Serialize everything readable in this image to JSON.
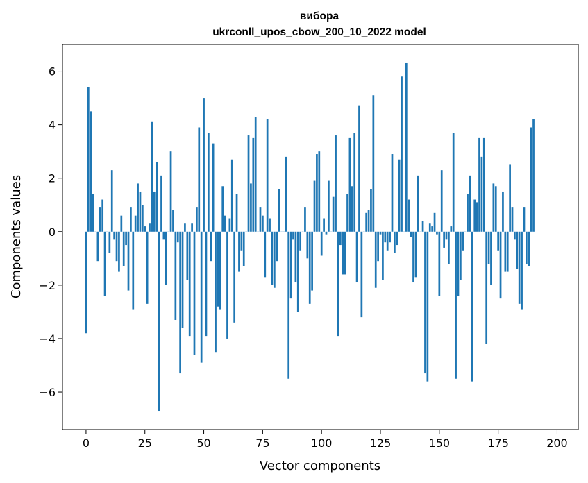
{
  "chart_data": {
    "type": "bar",
    "title": "вибора",
    "subtitle": "ukrconll_upos_cbow_200_10_2022 model",
    "xlabel": "Vector components",
    "ylabel": "Components values",
    "xlim": [
      -10,
      209
    ],
    "ylim": [
      -7.4,
      7.0
    ],
    "xticks": [
      0,
      25,
      50,
      75,
      100,
      125,
      150,
      175,
      200
    ],
    "yticks": [
      -6,
      -4,
      -2,
      0,
      2,
      4,
      6
    ],
    "grid": false,
    "bar_color": "#1f77b4",
    "values": [
      -3.8,
      5.4,
      4.5,
      1.4,
      0.0,
      -1.1,
      0.9,
      1.2,
      -2.4,
      0.0,
      -0.8,
      2.3,
      -0.3,
      -1.1,
      -1.5,
      0.6,
      -1.3,
      -0.5,
      -2.2,
      0.9,
      -2.9,
      0.6,
      1.8,
      1.5,
      1.0,
      0.2,
      -2.7,
      0.3,
      4.1,
      1.5,
      2.6,
      -6.7,
      2.1,
      -0.3,
      -2.0,
      0.0,
      3.0,
      0.8,
      -3.3,
      -0.4,
      -5.3,
      -3.6,
      0.3,
      -1.8,
      -3.9,
      0.3,
      -4.6,
      0.9,
      3.9,
      -4.9,
      5.0,
      -3.9,
      3.7,
      -1.1,
      3.3,
      -4.5,
      -2.8,
      -2.9,
      1.7,
      0.6,
      -4.0,
      0.5,
      2.7,
      -3.4,
      1.4,
      -1.5,
      -0.7,
      -1.3,
      0.0,
      3.6,
      1.8,
      3.5,
      4.3,
      0.0,
      0.9,
      0.6,
      -1.7,
      4.2,
      0.5,
      -2.0,
      -2.1,
      -1.1,
      1.6,
      0.0,
      0.0,
      2.8,
      -5.5,
      -2.5,
      -0.3,
      -1.9,
      -3.0,
      -0.7,
      0.0,
      0.9,
      -1.0,
      -2.7,
      -2.2,
      1.9,
      2.9,
      3.0,
      -0.9,
      0.5,
      -0.1,
      1.9,
      0.0,
      1.3,
      3.6,
      -3.9,
      -0.5,
      -1.6,
      -1.6,
      1.4,
      3.5,
      1.7,
      3.7,
      -1.9,
      4.7,
      -3.2,
      0.0,
      0.7,
      0.8,
      1.6,
      5.1,
      -2.1,
      -1.1,
      -0.1,
      -1.8,
      -0.4,
      -0.7,
      -0.4,
      2.9,
      -0.8,
      -0.5,
      2.7,
      5.8,
      0.0,
      6.3,
      1.2,
      -0.2,
      -1.9,
      -1.7,
      2.1,
      0.0,
      0.4,
      -5.3,
      -5.6,
      0.3,
      0.2,
      0.7,
      -0.1,
      -2.4,
      2.3,
      -0.6,
      -0.3,
      -1.2,
      0.2,
      3.7,
      -5.5,
      -2.4,
      -1.8,
      -0.7,
      0.0,
      1.4,
      2.1,
      -5.6,
      1.2,
      1.1,
      3.5,
      2.8,
      3.5,
      -4.2,
      -1.2,
      -2.0,
      1.8,
      1.7,
      -0.7,
      -2.5,
      1.5,
      -1.5,
      -1.5,
      2.5,
      0.9,
      -0.3,
      -1.4,
      -2.7,
      -2.9,
      0.9,
      -1.2,
      -1.3,
      3.9,
      4.2
    ]
  }
}
